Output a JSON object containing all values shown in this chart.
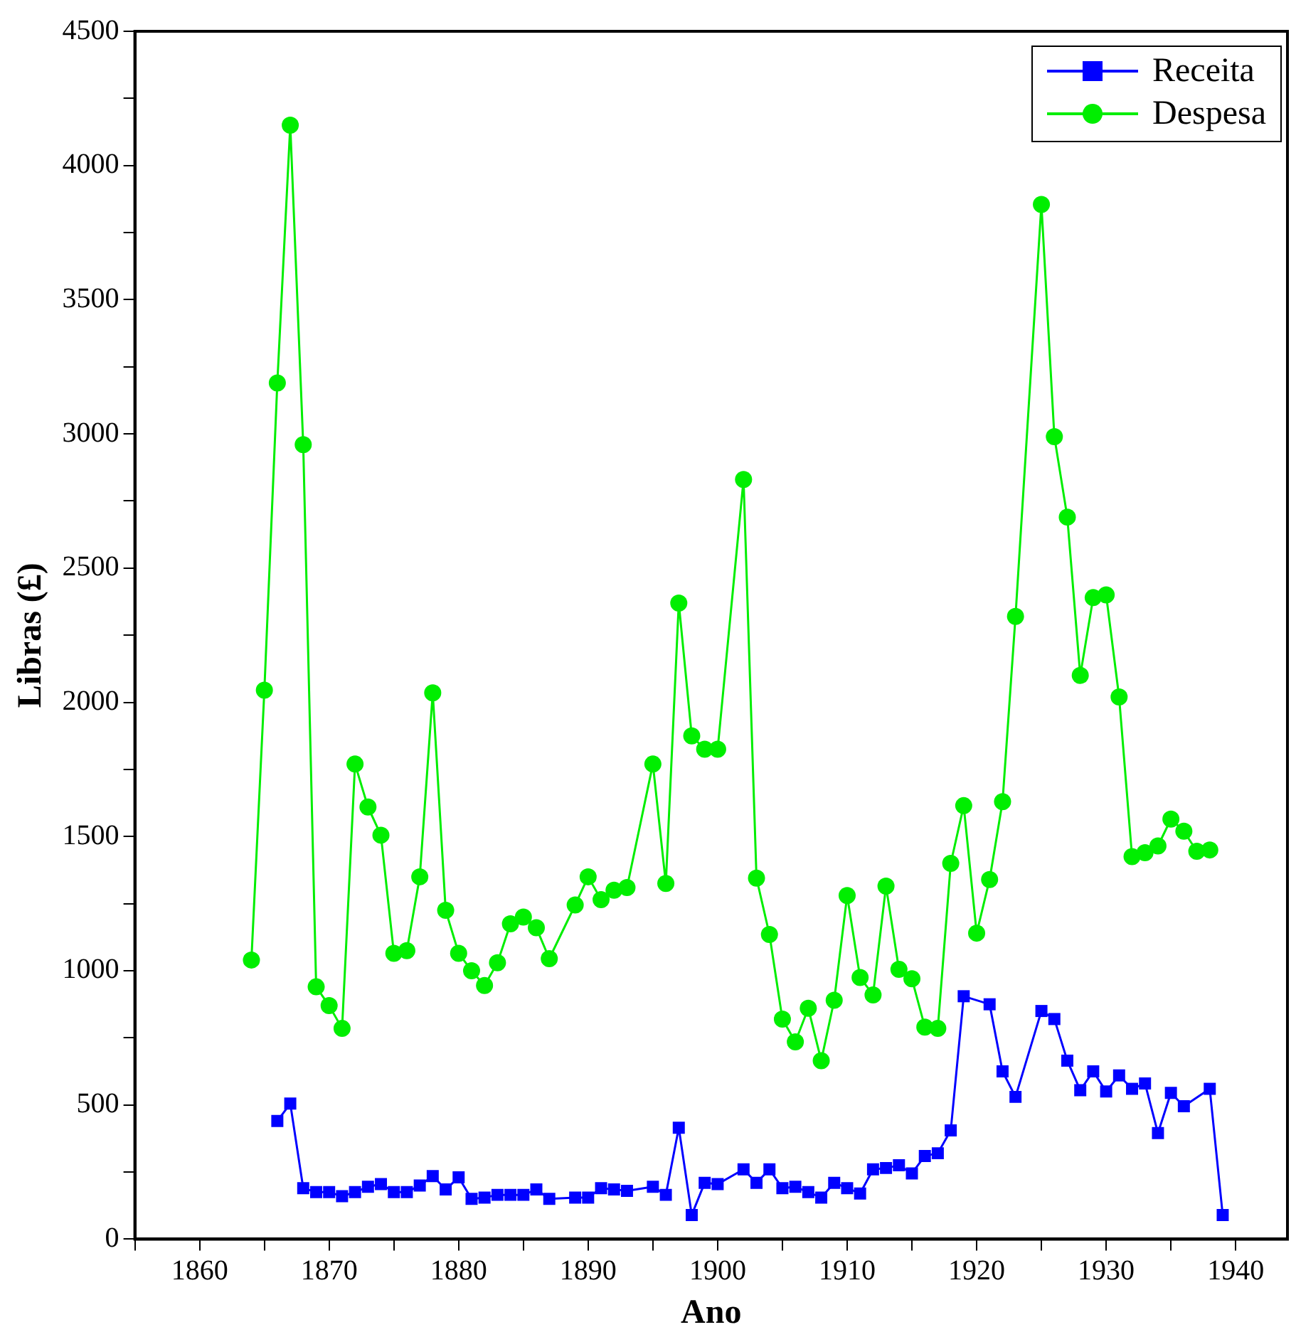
{
  "chart_data": {
    "type": "line",
    "xlabel": "Ano",
    "ylabel": "Libras (£)",
    "xlim": [
      1855,
      1944
    ],
    "xticks": [
      {
        "value": 1855,
        "label": null
      },
      1860,
      {
        "value": 1865,
        "label": null
      },
      1870,
      {
        "value": 1875,
        "label": null
      },
      1880,
      {
        "value": 1885,
        "label": null
      },
      1890,
      {
        "value": 1895,
        "label": null
      },
      1900,
      {
        "value": 1905,
        "label": null
      },
      1910,
      {
        "value": 1915,
        "label": null
      },
      1920,
      {
        "value": 1925,
        "label": null
      },
      1930,
      {
        "value": 1935,
        "label": null
      },
      1940
    ],
    "ylim": [
      0,
      4500
    ],
    "yticks": [
      0,
      {
        "value": 250,
        "label": null
      },
      500,
      {
        "value": 750,
        "label": null
      },
      1000,
      {
        "value": 1250,
        "label": null
      },
      1500,
      {
        "value": 1750,
        "label": null
      },
      2000,
      {
        "value": 2250,
        "label": null
      },
      2500,
      {
        "value": 2750,
        "label": null
      },
      3000,
      {
        "value": 3250,
        "label": null
      },
      3500,
      {
        "value": 3750,
        "label": null
      },
      4000,
      {
        "value": 4250,
        "label": null
      },
      4500
    ],
    "grid": false,
    "legend": "top right",
    "series": [
      {
        "name": "Receita",
        "color": "#0000ff",
        "marker": "square",
        "x": [
          1866,
          1867,
          1868,
          1869,
          1870,
          1871,
          1872,
          1873,
          1874,
          1875,
          1876,
          1877,
          1878,
          1879,
          1880,
          1881,
          1882,
          1883,
          1884,
          1885,
          1886,
          1887,
          1889,
          1890,
          1891,
          1892,
          1893,
          1895,
          1896,
          1897,
          1898,
          1899,
          1900,
          1902,
          1903,
          1904,
          1905,
          1906,
          1907,
          1908,
          1909,
          1910,
          1911,
          1912,
          1913,
          1914,
          1915,
          1916,
          1917,
          1918,
          1919,
          1921,
          1922,
          1923,
          1925,
          1926,
          1927,
          1928,
          1929,
          1930,
          1931,
          1932,
          1933,
          1934,
          1935,
          1936,
          1938,
          1939
        ],
        "values": [
          440,
          505,
          190,
          175,
          175,
          160,
          175,
          195,
          205,
          175,
          175,
          200,
          235,
          185,
          230,
          150,
          155,
          165,
          165,
          165,
          185,
          150,
          155,
          155,
          190,
          185,
          180,
          195,
          165,
          415,
          90,
          210,
          205,
          260,
          210,
          260,
          190,
          195,
          175,
          155,
          210,
          190,
          170,
          260,
          265,
          275,
          245,
          310,
          320,
          405,
          905,
          875,
          625,
          530,
          850,
          820,
          665,
          555,
          625,
          550,
          610,
          560,
          580,
          395,
          545,
          495,
          560,
          90
        ]
      },
      {
        "name": "Despesa",
        "color": "#00ee00",
        "marker": "circle",
        "x": [
          1864,
          1865,
          1866,
          1867,
          1868,
          1869,
          1870,
          1871,
          1872,
          1873,
          1874,
          1875,
          1876,
          1877,
          1878,
          1879,
          1880,
          1881,
          1882,
          1883,
          1884,
          1885,
          1886,
          1887,
          1889,
          1890,
          1891,
          1892,
          1893,
          1895,
          1896,
          1897,
          1898,
          1899,
          1900,
          1902,
          1903,
          1904,
          1905,
          1906,
          1907,
          1908,
          1909,
          1910,
          1911,
          1912,
          1913,
          1914,
          1915,
          1916,
          1917,
          1918,
          1919,
          1920,
          1921,
          1922,
          1923,
          1925,
          1926,
          1927,
          1928,
          1929,
          1930,
          1931,
          1932,
          1933,
          1934,
          1935,
          1936,
          1937,
          1938
        ],
        "values": [
          1040,
          2045,
          3190,
          4150,
          2960,
          940,
          870,
          785,
          1770,
          1610,
          1505,
          1065,
          1075,
          1350,
          2035,
          1225,
          1065,
          1000,
          945,
          1030,
          1175,
          1200,
          1160,
          1045,
          1245,
          1350,
          1265,
          1300,
          1310,
          1770,
          1325,
          2370,
          1875,
          1825,
          1825,
          2830,
          1345,
          1135,
          820,
          735,
          860,
          665,
          890,
          1280,
          975,
          910,
          1315,
          1005,
          970,
          790,
          785,
          1400,
          1615,
          1140,
          1340,
          1630,
          2320,
          3855,
          2990,
          2690,
          2100,
          2390,
          2400,
          2020,
          1425,
          1440,
          1465,
          1565,
          1520,
          1445,
          1450
        ]
      }
    ]
  }
}
